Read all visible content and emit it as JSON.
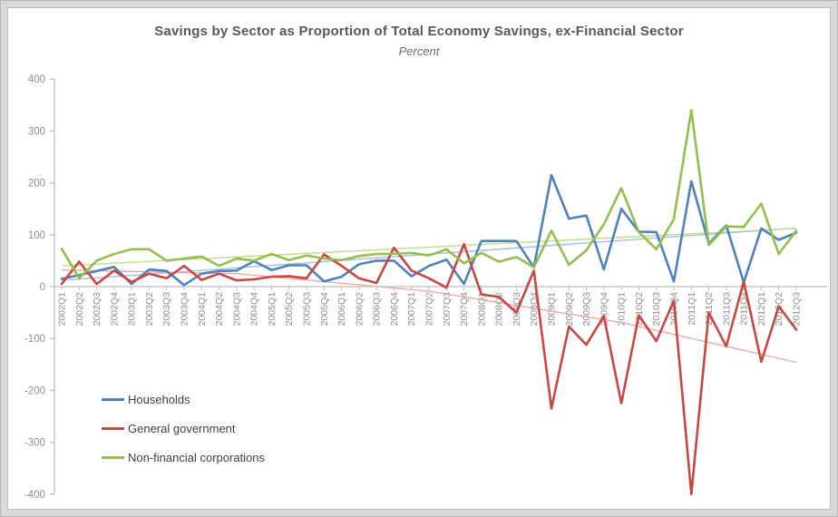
{
  "title": "Savings by Sector as Proportion of Total Economy Savings, ex-Financial Sector",
  "subtitle": "Percent",
  "legend": {
    "items": [
      {
        "label": "Households",
        "color": "#4E81BD"
      },
      {
        "label": "General government",
        "color": "#C94743"
      },
      {
        "label": "Non-financial corporations",
        "color": "#94BE4E"
      }
    ]
  },
  "colors": {
    "households": "#4E81BD",
    "government": "#C94743",
    "corporations": "#94BE4E",
    "households_trend": "#A3BFDF",
    "government_trend": "#EBA9A6",
    "corporations_trend": "#C2DA8F",
    "axis": "#bfbfbf",
    "tick_label": "#8e8e8e"
  },
  "chart_data": {
    "type": "line",
    "title": "Savings by Sector as Proportion of Total Economy Savings, ex-Financial Sector",
    "subtitle": "Percent",
    "xlabel": "",
    "ylabel": "Percent",
    "ylim": [
      -400,
      400
    ],
    "y_ticks": [
      400,
      300,
      200,
      100,
      0,
      -100,
      -200,
      -300,
      -400
    ],
    "grid": false,
    "legend_position": "bottom-left",
    "categories": [
      "2002Q1",
      "2002Q2",
      "2002Q3",
      "2002Q4",
      "2003Q1",
      "2003Q2",
      "2003Q3",
      "2003Q4",
      "2004Q1",
      "2004Q2",
      "2004Q3",
      "2004Q4",
      "2005Q1",
      "2005Q2",
      "2005Q3",
      "2005Q4",
      "2006Q1",
      "2006Q2",
      "2006Q3",
      "2006Q4",
      "2007Q1",
      "2007Q2",
      "2007Q3",
      "2007Q4",
      "2008Q1",
      "2008Q2",
      "2008Q3",
      "2008Q4",
      "2009Q1",
      "2009Q2",
      "2009Q3",
      "2009Q4",
      "2010Q1",
      "2010Q2",
      "2010Q3",
      "2010Q4",
      "2011Q1",
      "2011Q2",
      "2011Q3",
      "2011Q4",
      "2012Q1",
      "2012Q2",
      "2012Q3"
    ],
    "series": [
      {
        "name": "Households",
        "color": "#4E81BD",
        "values": [
          15,
          22,
          30,
          38,
          5,
          33,
          30,
          3,
          25,
          30,
          31,
          49,
          32,
          41,
          41,
          10,
          19,
          43,
          50,
          50,
          20,
          40,
          52,
          5,
          88,
          88,
          88,
          37,
          215,
          131,
          137,
          33,
          150,
          106,
          105,
          10,
          203,
          83,
          118,
          8,
          112,
          90,
          104
        ]
      },
      {
        "name": "General government",
        "color": "#C94743",
        "values": [
          5,
          48,
          5,
          31,
          9,
          25,
          16,
          40,
          13,
          25,
          12,
          14,
          19,
          20,
          16,
          62,
          40,
          16,
          7,
          75,
          31,
          16,
          -2,
          82,
          -15,
          -20,
          -50,
          31,
          -235,
          -77,
          -112,
          -57,
          -225,
          -55,
          -105,
          -27,
          -400,
          -50,
          -115,
          10,
          -145,
          -38,
          -83
        ]
      },
      {
        "name": "Non-financial corporations",
        "color": "#94BE4E",
        "values": [
          73,
          16,
          50,
          63,
          72,
          72,
          50,
          54,
          58,
          40,
          54,
          50,
          63,
          51,
          60,
          54,
          51,
          59,
          63,
          63,
          65,
          60,
          72,
          45,
          65,
          48,
          57,
          37,
          108,
          42,
          70,
          120,
          190,
          105,
          72,
          130,
          340,
          80,
          116,
          115,
          160,
          63,
          108
        ]
      }
    ],
    "trendlines": [
      {
        "series": "Households",
        "type": "linear",
        "color": "#A3BFDF",
        "points": [
          {
            "x": 0,
            "v": 12
          },
          {
            "x": 42,
            "v": 113
          }
        ]
      },
      {
        "series": "General government",
        "type": "polynomial",
        "color": "#EBA9A6",
        "points": [
          {
            "x": 0,
            "v": 32
          },
          {
            "x": 10,
            "v": 25
          },
          {
            "x": 21,
            "v": -9
          },
          {
            "x": 32,
            "v": -69
          },
          {
            "x": 42,
            "v": -146
          }
        ]
      },
      {
        "series": "Non-financial corporations",
        "type": "linear",
        "color": "#C2DA8F",
        "points": [
          {
            "x": 0,
            "v": 40
          },
          {
            "x": 42,
            "v": 112
          }
        ]
      }
    ]
  }
}
